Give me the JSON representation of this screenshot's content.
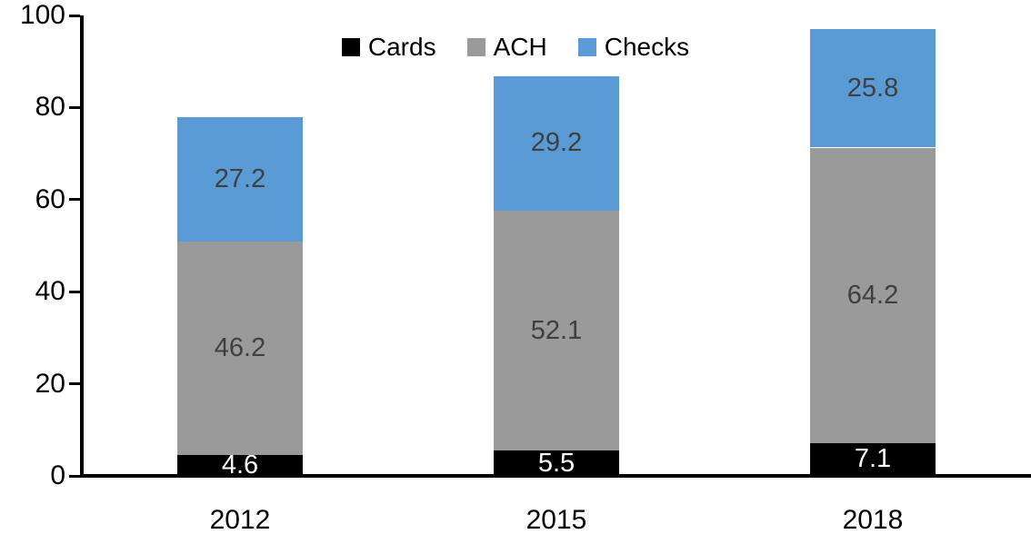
{
  "chart_data": {
    "type": "bar",
    "stacked": true,
    "title": "",
    "xlabel": "",
    "ylabel": "",
    "categories": [
      "2012",
      "2015",
      "2018"
    ],
    "series": [
      {
        "name": "Cards",
        "color": "#000000",
        "label_color": "#ffffff",
        "values": [
          4.6,
          5.5,
          7.1
        ]
      },
      {
        "name": "ACH",
        "color": "#9a9a9a",
        "label_color": "#3f3f3f",
        "values": [
          46.2,
          52.1,
          64.2
        ]
      },
      {
        "name": "Checks",
        "color": "#5b9bd5",
        "label_color": "#3f3f3f",
        "values": [
          27.2,
          29.2,
          25.8
        ]
      }
    ],
    "ylim": [
      0,
      100
    ],
    "yticks": [
      0,
      20,
      40,
      60,
      80,
      100
    ],
    "grid": false,
    "legend_position": "top-center",
    "axis_color": "#000000"
  }
}
